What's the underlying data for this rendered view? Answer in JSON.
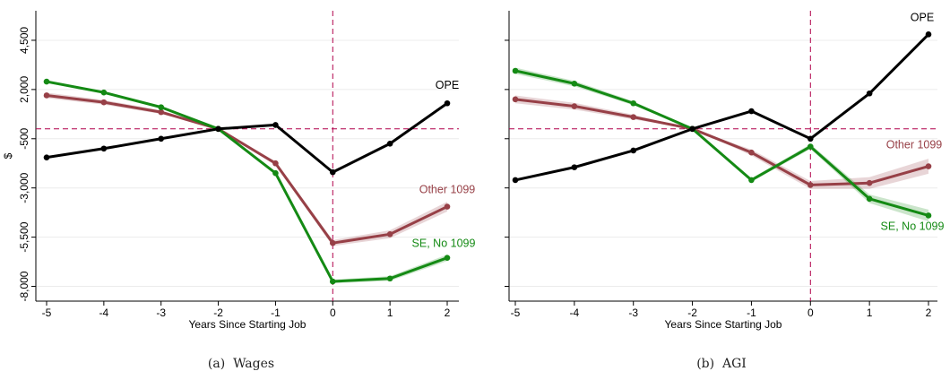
{
  "colors": {
    "ope": "#000000",
    "other_1099": "#974047",
    "se_no_1099": "#148a14",
    "reference_line": "#b0004a",
    "grid": "#ececec"
  },
  "chart_data": [
    {
      "type": "line",
      "panel": "a",
      "caption_label": "(a)",
      "caption_title": "Wages",
      "xlabel": "Years Since Starting Job",
      "ylabel": "$",
      "x": [
        -5,
        -4,
        -3,
        -2,
        -1,
        0,
        1,
        2
      ],
      "x_tick_labels": [
        "-5",
        "-4",
        "-3",
        "-2",
        "-1",
        "0",
        "1",
        "2"
      ],
      "ylim": [
        -8750,
        6000
      ],
      "y_ticks": [
        -8000,
        -5500,
        -3000,
        -500,
        2000,
        4500
      ],
      "y_tick_labels": [
        "-8,000",
        "-5,500",
        "-3,000",
        "-500",
        "2,000",
        "4,500"
      ],
      "reference_lines": {
        "x": 0,
        "y": 0
      },
      "series": [
        {
          "name": "OPE",
          "color_key": "ope",
          "values": [
            -1450,
            -1000,
            -500,
            0,
            200,
            -2200,
            -750,
            1300
          ],
          "ci_halfwidth": [
            0,
            0,
            0,
            0,
            0,
            0,
            0,
            0
          ]
        },
        {
          "name": "Other 1099",
          "color_key": "other_1099",
          "values": [
            1700,
            1350,
            850,
            0,
            -1750,
            -5800,
            -5350,
            -3950
          ],
          "ci_halfwidth": [
            140,
            120,
            90,
            0,
            110,
            150,
            200,
            250
          ]
        },
        {
          "name": "SE, No 1099",
          "color_key": "se_no_1099",
          "values": [
            2400,
            1850,
            1100,
            0,
            -2250,
            -7750,
            -7600,
            -6550
          ],
          "ci_halfwidth": [
            70,
            60,
            50,
            0,
            60,
            90,
            120,
            160
          ]
        }
      ]
    },
    {
      "type": "line",
      "panel": "b",
      "caption_label": "(b)",
      "caption_title": "AGI",
      "xlabel": "Years Since Starting Job",
      "ylabel": "",
      "x": [
        -5,
        -4,
        -3,
        -2,
        -1,
        0,
        1,
        2
      ],
      "x_tick_labels": [
        "-5",
        "-4",
        "-3",
        "-2",
        "-1",
        "0",
        "1",
        "2"
      ],
      "ylim": [
        -8750,
        6000
      ],
      "y_ticks": [
        -8000,
        -5500,
        -3000,
        -500,
        2000,
        4500
      ],
      "y_tick_labels": [
        "",
        "",
        "",
        "",
        "",
        ""
      ],
      "reference_lines": {
        "x": 0,
        "y": 0
      },
      "series": [
        {
          "name": "OPE",
          "color_key": "ope",
          "values": [
            -2600,
            -1950,
            -1100,
            0,
            900,
            -500,
            1800,
            4800
          ],
          "ci_halfwidth": [
            0,
            0,
            0,
            0,
            0,
            0,
            0,
            0
          ]
        },
        {
          "name": "Other 1099",
          "color_key": "other_1099",
          "values": [
            1500,
            1150,
            600,
            0,
            -1200,
            -2850,
            -2750,
            -1900
          ],
          "ci_halfwidth": [
            200,
            170,
            120,
            0,
            150,
            200,
            300,
            380
          ]
        },
        {
          "name": "SE, No 1099",
          "color_key": "se_no_1099",
          "values": [
            2950,
            2300,
            1300,
            0,
            -2600,
            -900,
            -3550,
            -4400
          ],
          "ci_halfwidth": [
            160,
            140,
            100,
            0,
            90,
            120,
            220,
            300
          ]
        }
      ]
    }
  ]
}
